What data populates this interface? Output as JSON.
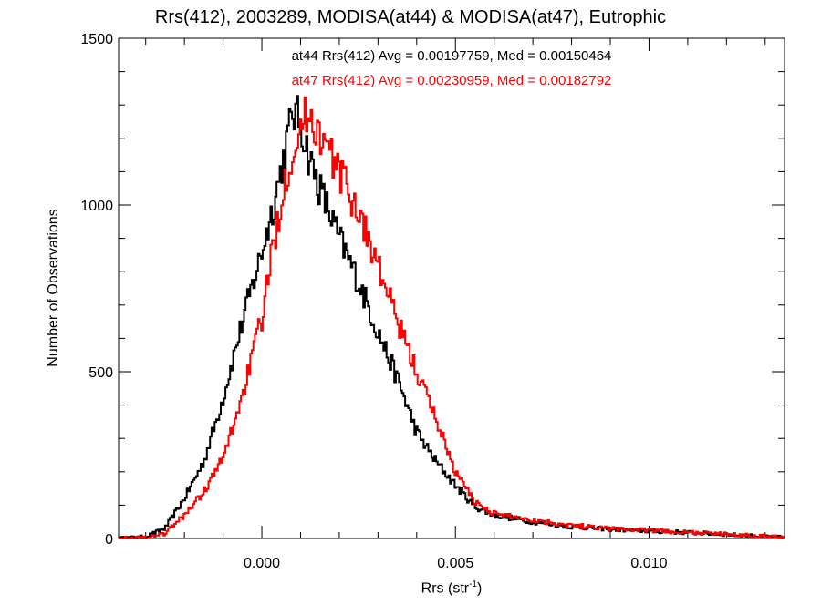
{
  "chart_data": {
    "type": "histogram-step",
    "title": "Rrs(412), 2003289, MODISA(at44) & MODISA(at47), Eutrophic",
    "xlabel_main": "Rrs (str",
    "xlabel_sup": "-1",
    "xlabel_close": ")",
    "ylabel": "Number of Observations",
    "xlim": [
      -0.0037,
      0.0135
    ],
    "ylim": [
      0,
      1500
    ],
    "xticks": [
      0.0,
      0.005,
      0.01
    ],
    "xtick_labels": [
      "0.000",
      "0.005",
      "0.010"
    ],
    "yticks": [
      0,
      500,
      1000,
      1500
    ],
    "ytick_labels": [
      "0",
      "500",
      "1000",
      "1500"
    ],
    "annotations": [
      "at44 Rrs(412) Avg = 0.00197759, Med = 0.00150464",
      "at47 Rrs(412) Avg = 0.00230959, Med = 0.00182792"
    ],
    "series": [
      {
        "color": "#000000",
        "points": [
          [
            -0.0037,
            0
          ],
          [
            -0.003,
            5
          ],
          [
            -0.0025,
            30
          ],
          [
            -0.002,
            120
          ],
          [
            -0.0015,
            230
          ],
          [
            -0.001,
            420
          ],
          [
            -0.0005,
            650
          ],
          [
            0.0,
            860
          ],
          [
            0.0003,
            1000
          ],
          [
            0.0006,
            1160
          ],
          [
            0.0008,
            1280
          ],
          [
            0.001,
            1250
          ],
          [
            0.0012,
            1150
          ],
          [
            0.0015,
            1050
          ],
          [
            0.002,
            900
          ],
          [
            0.0025,
            770
          ],
          [
            0.003,
            620
          ],
          [
            0.0035,
            480
          ],
          [
            0.004,
            320
          ],
          [
            0.0045,
            230
          ],
          [
            0.005,
            160
          ],
          [
            0.0055,
            95
          ],
          [
            0.006,
            70
          ],
          [
            0.007,
            50
          ],
          [
            0.008,
            35
          ],
          [
            0.009,
            28
          ],
          [
            0.01,
            22
          ],
          [
            0.011,
            18
          ],
          [
            0.012,
            12
          ],
          [
            0.013,
            6
          ],
          [
            0.0135,
            3
          ]
        ]
      },
      {
        "color": "#ff0000",
        "points": [
          [
            -0.0037,
            0
          ],
          [
            -0.003,
            3
          ],
          [
            -0.0025,
            15
          ],
          [
            -0.002,
            70
          ],
          [
            -0.0015,
            140
          ],
          [
            -0.001,
            240
          ],
          [
            -0.0005,
            430
          ],
          [
            0.0,
            660
          ],
          [
            0.0003,
            880
          ],
          [
            0.0006,
            1080
          ],
          [
            0.0009,
            1200
          ],
          [
            0.0012,
            1280
          ],
          [
            0.0015,
            1210
          ],
          [
            0.002,
            1100
          ],
          [
            0.0025,
            980
          ],
          [
            0.003,
            820
          ],
          [
            0.0035,
            650
          ],
          [
            0.004,
            500
          ],
          [
            0.0045,
            360
          ],
          [
            0.005,
            200
          ],
          [
            0.0055,
            110
          ],
          [
            0.006,
            75
          ],
          [
            0.007,
            55
          ],
          [
            0.008,
            40
          ],
          [
            0.009,
            30
          ],
          [
            0.01,
            24
          ],
          [
            0.011,
            18
          ],
          [
            0.012,
            13
          ],
          [
            0.013,
            7
          ],
          [
            0.0135,
            3
          ]
        ]
      }
    ]
  }
}
